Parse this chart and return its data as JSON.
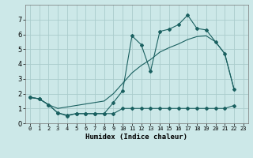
{
  "xlabel": "Humidex (Indice chaleur)",
  "bg_color": "#cce8e8",
  "grid_color": "#aacccc",
  "line_color": "#1a6060",
  "x_ticks": [
    0,
    1,
    2,
    3,
    4,
    5,
    6,
    7,
    8,
    9,
    10,
    11,
    12,
    13,
    14,
    15,
    16,
    17,
    18,
    19,
    20,
    21,
    22,
    23
  ],
  "ylim": [
    0,
    8
  ],
  "xlim": [
    -0.5,
    23.5
  ],
  "line1_x": [
    0,
    1,
    2,
    3,
    4,
    5,
    6,
    7,
    8,
    9,
    10,
    11,
    12,
    13,
    14,
    15,
    16,
    17,
    18,
    19,
    20,
    21,
    22
  ],
  "line1_y": [
    1.75,
    1.65,
    1.25,
    0.7,
    0.55,
    0.65,
    0.65,
    0.65,
    0.65,
    1.4,
    2.2,
    5.9,
    5.3,
    3.5,
    6.2,
    6.35,
    6.65,
    7.3,
    6.4,
    6.3,
    5.5,
    4.7,
    2.3
  ],
  "line2_x": [
    0,
    1,
    2,
    3,
    4,
    5,
    6,
    7,
    8,
    9,
    10,
    11,
    12,
    13,
    14,
    15,
    16,
    17,
    18,
    19,
    20,
    21,
    22
  ],
  "line2_y": [
    1.75,
    1.65,
    1.25,
    1.0,
    1.1,
    1.2,
    1.3,
    1.4,
    1.5,
    2.0,
    2.7,
    3.4,
    3.9,
    4.3,
    4.8,
    5.1,
    5.35,
    5.65,
    5.85,
    5.9,
    5.5,
    4.7,
    2.3
  ],
  "line3_x": [
    0,
    1,
    2,
    3,
    4,
    5,
    6,
    7,
    8,
    9,
    10,
    11,
    12,
    13,
    14,
    15,
    16,
    17,
    18,
    19,
    20,
    21,
    22
  ],
  "line3_y": [
    1.75,
    1.65,
    1.25,
    0.7,
    0.5,
    0.65,
    0.65,
    0.65,
    0.65,
    0.65,
    1.0,
    1.0,
    1.0,
    1.0,
    1.0,
    1.0,
    1.0,
    1.0,
    1.0,
    1.0,
    1.0,
    1.0,
    1.2
  ],
  "yticks": [
    0,
    1,
    2,
    3,
    4,
    5,
    6,
    7
  ]
}
